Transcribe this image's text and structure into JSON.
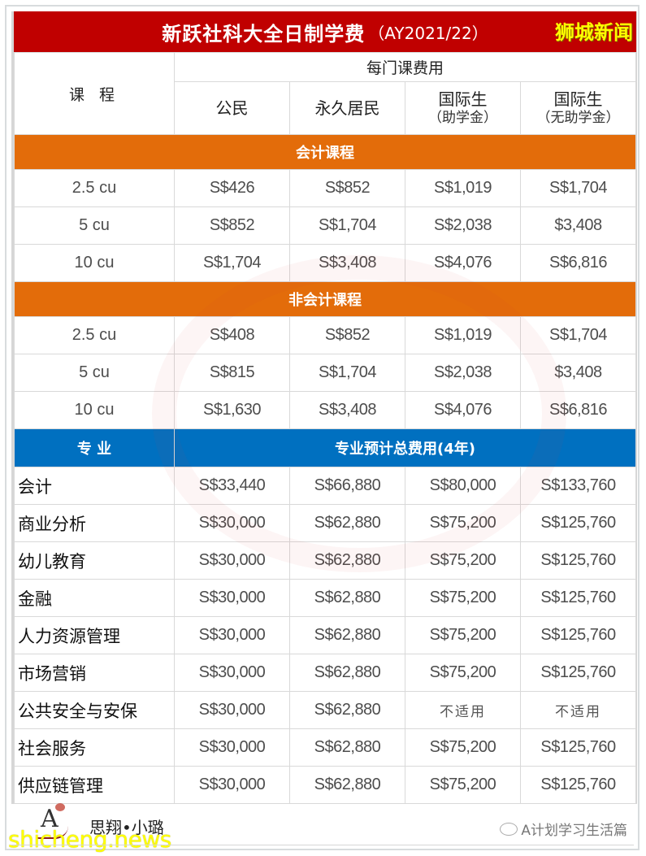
{
  "title": {
    "main": "新跃社科大全日制学费",
    "year": "（AY2021/22）",
    "brand": "狮城新闻"
  },
  "header": {
    "course_label": "课  程",
    "per_course_fee": "每门课费用",
    "columns": [
      {
        "line1": "公民",
        "line2": ""
      },
      {
        "line1": "永久居民",
        "line2": ""
      },
      {
        "line1": "国际生",
        "line2": "（助学金）"
      },
      {
        "line1": "国际生",
        "line2": "（无助学金）"
      }
    ]
  },
  "sections": {
    "accounting": {
      "title": "会计课程",
      "rows": [
        {
          "course": "2.5 cu",
          "values": [
            "S$426",
            "S$852",
            "S$1,019",
            "S$1,704"
          ]
        },
        {
          "course": "5 cu",
          "values": [
            "S$852",
            "S$1,704",
            "S$2,038",
            "$3,408"
          ]
        },
        {
          "course": "10 cu",
          "values": [
            "S$1,704",
            "S$3,408",
            "S$4,076",
            "S$6,816"
          ]
        }
      ]
    },
    "non_accounting": {
      "title": "非会计课程",
      "rows": [
        {
          "course": "2.5 cu",
          "values": [
            "S$408",
            "S$852",
            "S$1,019",
            "S$1,704"
          ]
        },
        {
          "course": "5 cu",
          "values": [
            "S$815",
            "S$1,704",
            "S$2,038",
            "$3,408"
          ]
        },
        {
          "course": "10 cu",
          "values": [
            "S$1,630",
            "S$3,408",
            "S$4,076",
            "S$6,816"
          ]
        }
      ]
    },
    "majors": {
      "col_label": "专 业",
      "title": "专业预计总费用(4年)",
      "rows": [
        {
          "major": "会计",
          "values": [
            "S$33,440",
            "S$66,880",
            "S$80,000",
            "S$133,760"
          ]
        },
        {
          "major": "商业分析",
          "values": [
            "S$30,000",
            "S$62,880",
            "S$75,200",
            "S$125,760"
          ]
        },
        {
          "major": "幼儿教育",
          "values": [
            "S$30,000",
            "S$62,880",
            "S$75,200",
            "S$125,760"
          ]
        },
        {
          "major": "金融",
          "values": [
            "S$30,000",
            "S$62,880",
            "S$75,200",
            "S$125,760"
          ]
        },
        {
          "major": "人力资源管理",
          "values": [
            "S$30,000",
            "S$62,880",
            "S$75,200",
            "S$125,760"
          ]
        },
        {
          "major": "市场营销",
          "values": [
            "S$30,000",
            "S$62,880",
            "S$75,200",
            "S$125,760"
          ]
        },
        {
          "major": "公共安全与安保",
          "values": [
            "S$30,000",
            "S$62,880",
            "不适用",
            "不适用"
          ]
        },
        {
          "major": "社会服务",
          "values": [
            "S$30,000",
            "S$62,880",
            "S$75,200",
            "S$125,760"
          ]
        },
        {
          "major": "供应链管理",
          "values": [
            "S$30,000",
            "S$62,880",
            "S$75,200",
            "S$125,760"
          ]
        }
      ]
    }
  },
  "footer": {
    "logo_letter": "A",
    "author": "思翔•小璐",
    "site_watermark": "shicheng.news",
    "wechat_account": "A计划学习生活篇"
  },
  "colors": {
    "title_red": "#c00000",
    "section_orange": "#e36c0a",
    "section_blue": "#0070c0",
    "brand_yellow": "#ffff00"
  }
}
